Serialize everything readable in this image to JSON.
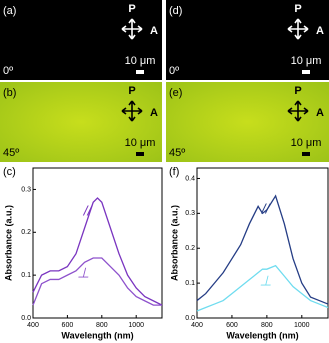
{
  "panels": [
    {
      "label": "(a)",
      "polarizer": "P",
      "analyzer": "A",
      "scale": "10 μm",
      "angle": "0º"
    },
    {
      "label": "(b)",
      "polarizer": "P",
      "analyzer": "A",
      "scale": "10 μm",
      "angle": "45º"
    },
    {
      "label": "(d)",
      "polarizer": "P",
      "analyzer": "A",
      "scale": "10 μm",
      "angle": "0º"
    },
    {
      "label": "(e)",
      "polarizer": "P",
      "analyzer": "A",
      "scale": "10 μm",
      "angle": "45º"
    }
  ],
  "chart_data": [
    {
      "type": "line",
      "label": "(c)",
      "xlabel": "Wavelength (nm)",
      "ylabel": "Absorbance (a.u.)",
      "x": [
        400,
        450,
        500,
        550,
        600,
        650,
        700,
        750,
        775,
        800,
        850,
        900,
        950,
        1000,
        1050,
        1100,
        1150
      ],
      "series": [
        {
          "name": "//",
          "color": "#7a35c0",
          "values": [
            0.06,
            0.1,
            0.11,
            0.11,
            0.12,
            0.15,
            0.21,
            0.27,
            0.28,
            0.27,
            0.21,
            0.15,
            0.1,
            0.07,
            0.05,
            0.04,
            0.03
          ]
        },
        {
          "name": "⊥",
          "color": "#8e52cc",
          "values": [
            0.03,
            0.08,
            0.09,
            0.09,
            0.1,
            0.11,
            0.13,
            0.14,
            0.14,
            0.14,
            0.12,
            0.1,
            0.07,
            0.05,
            0.04,
            0.03,
            0.03
          ]
        }
      ],
      "xlim": [
        400,
        1150
      ],
      "xticks": [
        400,
        600,
        800,
        1000
      ],
      "ylim": [
        0,
        0.35
      ],
      "yticks": [
        {
          "value": 0,
          "label": "0.0"
        },
        0.1,
        0.2,
        0.3
      ]
    },
    {
      "type": "line",
      "label": "(f)",
      "xlabel": "Wavelength (nm)",
      "ylabel": "Absorbance (a.u.)",
      "x": [
        400,
        450,
        500,
        550,
        600,
        650,
        700,
        750,
        775,
        800,
        850,
        900,
        950,
        1000,
        1050,
        1100,
        1150
      ],
      "series": [
        {
          "name": "//",
          "color": "#253d85",
          "values": [
            0.05,
            0.07,
            0.1,
            0.13,
            0.17,
            0.21,
            0.27,
            0.32,
            0.3,
            0.31,
            0.35,
            0.27,
            0.17,
            0.1,
            0.06,
            0.05,
            0.04
          ]
        },
        {
          "name": "⊥",
          "color": "#6fdcef",
          "values": [
            0.02,
            0.03,
            0.04,
            0.05,
            0.07,
            0.09,
            0.11,
            0.13,
            0.14,
            0.14,
            0.15,
            0.12,
            0.09,
            0.07,
            0.05,
            0.04,
            0.03
          ]
        }
      ],
      "xlim": [
        400,
        1150
      ],
      "xticks": [
        400,
        600,
        800,
        1000
      ],
      "ylim": [
        0,
        0.43
      ],
      "yticks": [
        {
          "value": 0,
          "label": "0.0"
        },
        0.1,
        0.2,
        0.3,
        0.4
      ]
    }
  ]
}
